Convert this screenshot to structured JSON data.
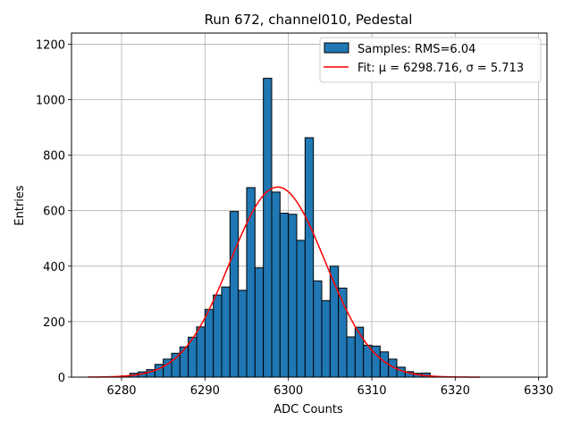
{
  "chart_data": {
    "type": "bar",
    "title": "Run 672, channel010, Pedestal",
    "xlabel": "ADC Counts",
    "ylabel": "Entries",
    "xlim": [
      6274,
      6331
    ],
    "ylim": [
      0,
      1240
    ],
    "xticks": [
      "6280",
      "6290",
      "6300",
      "6310",
      "6320",
      "6330"
    ],
    "yticks": [
      "0",
      "200",
      "400",
      "600",
      "800",
      "1000",
      "1200"
    ],
    "grid": true,
    "legend_position": "top-right",
    "bin_width": 1,
    "bar_color": "#1f77b4",
    "fit_color": "#ff0000",
    "series": [
      {
        "name": "Samples: RMS=6.04",
        "type": "histogram",
        "bin_starts": [
          6280,
          6281,
          6282,
          6283,
          6284,
          6285,
          6286,
          6287,
          6288,
          6289,
          6290,
          6291,
          6292,
          6293,
          6294,
          6295,
          6296,
          6297,
          6298,
          6299,
          6300,
          6301,
          6302,
          6303,
          6304,
          6305,
          6306,
          6307,
          6308,
          6309,
          6310,
          6311,
          6312,
          6313,
          6314,
          6315,
          6316,
          6317
        ],
        "counts": [
          5,
          14,
          19,
          27,
          46,
          65,
          86,
          109,
          144,
          181,
          244,
          296,
          325,
          597,
          313,
          683,
          394,
          1077,
          667,
          591,
          587,
          493,
          863,
          347,
          276,
          400,
          321,
          145,
          180,
          115,
          112,
          91,
          65,
          36,
          20,
          14,
          15,
          2
        ]
      },
      {
        "name": "Fit: μ = 6298.716, σ = 5.713",
        "type": "gaussian-fit",
        "mu": 6298.716,
        "sigma": 5.713,
        "amplitude": 685,
        "x_range": [
          6276,
          6323
        ]
      }
    ]
  }
}
